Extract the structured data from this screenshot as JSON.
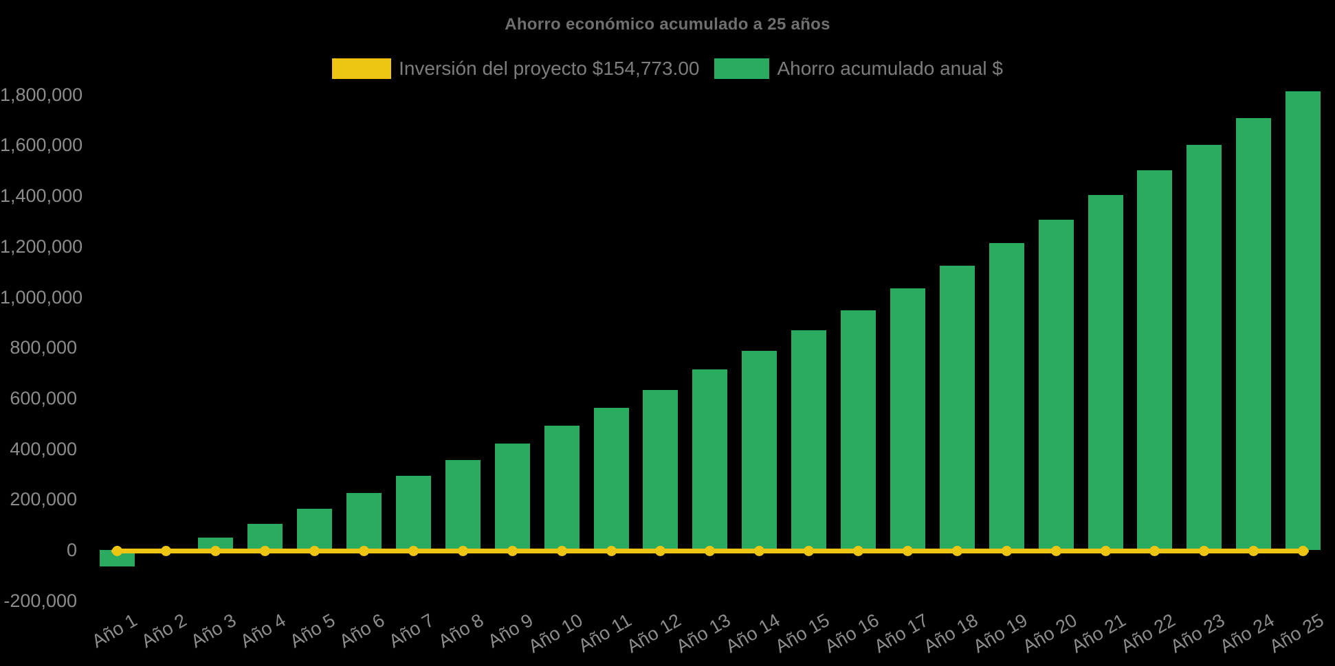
{
  "title": "Ahorro económico acumulado a 25 años",
  "legend": {
    "items": [
      {
        "label": "Inversión del proyecto $154,773.00",
        "color": "#EFC514",
        "series_type": "line"
      },
      {
        "label": "Ahorro acumulado anual $",
        "color": "#2AAB5F",
        "series_type": "bar"
      }
    ]
  },
  "colors": {
    "background": "#000000",
    "bar_green": "#2AAB5F",
    "line_yellow": "#EFC514",
    "title_text": "#6F6F6F",
    "legend_text": "#7D7D7D",
    "axis_text": "#8C8C8C"
  },
  "chart_data": {
    "type": "bar",
    "title": "Ahorro económico acumulado a 25 años",
    "categories": [
      "Año 1",
      "Año 2",
      "Año 3",
      "Año 4",
      "Año 5",
      "Año 6",
      "Año 7",
      "Año 8",
      "Año 9",
      "Año 10",
      "Año 11",
      "Año 12",
      "Año 13",
      "Año 14",
      "Año 15",
      "Año 16",
      "Año 17",
      "Año 18",
      "Año 19",
      "Año 20",
      "Año 21",
      "Año 22",
      "Año 23",
      "Año 24",
      "Año 25"
    ],
    "series": [
      {
        "name": "Inversión del proyecto $154,773.00",
        "type": "line",
        "color": "#EFC514",
        "marker": "circle",
        "values": [
          0,
          0,
          0,
          0,
          0,
          0,
          0,
          0,
          0,
          0,
          0,
          0,
          0,
          0,
          0,
          0,
          0,
          0,
          0,
          0,
          0,
          0,
          0,
          0,
          0
        ]
      },
      {
        "name": "Ahorro acumulado anual $",
        "type": "bar",
        "color": "#2AAB5F",
        "values": [
          -65000,
          0,
          49000,
          103000,
          163000,
          225000,
          293000,
          355000,
          420000,
          491000,
          562000,
          632000,
          713000,
          787000,
          868000,
          947000,
          1034000,
          1123000,
          1213000,
          1305000,
          1402000,
          1500000,
          1601000,
          1706000,
          1812000
        ]
      }
    ],
    "investment_amount_shown_in_legend": 154773.0,
    "xlabel": "",
    "ylabel": "",
    "y_axis": {
      "min": -200000,
      "max": 1800000,
      "tick_step": 200000,
      "tick_labels": [
        "-200,000",
        "0",
        "200,000",
        "400,000",
        "600,000",
        "800,000",
        "1,000,000",
        "1,200,000",
        "1,400,000",
        "1,600,000",
        "1,800,000"
      ]
    },
    "grid": false,
    "legend_position": "top",
    "x_labels_rotation_deg": -30,
    "background": "#000000"
  }
}
